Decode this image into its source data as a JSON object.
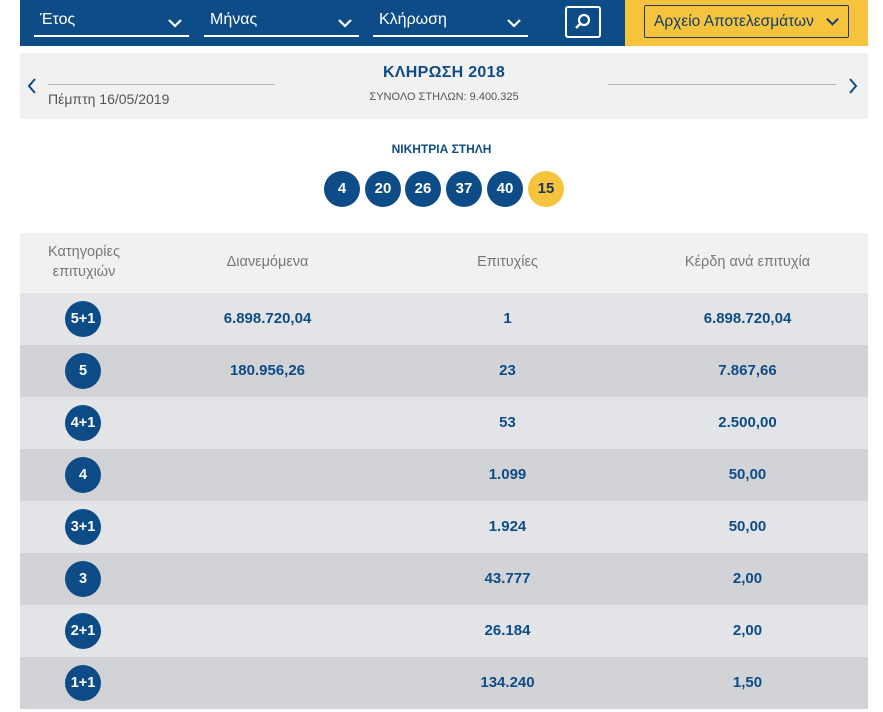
{
  "filters": {
    "year_label": "Έτος",
    "month_label": "Μήνας",
    "draw_label": "Κλήρωση",
    "archive_label": "Αρχείο Αποτελεσμάτων"
  },
  "draw": {
    "date": "Πέμπτη 16/05/2019",
    "title": "ΚΛΗΡΩΣΗ 2018",
    "total_columns": "ΣΥΝΟΛΟ ΣΤΗΛΩΝ: 9.400.325"
  },
  "winning": {
    "label": "ΝΙΚΗΤΡΙΑ ΣΤΗΛΗ",
    "numbers": [
      "4",
      "20",
      "26",
      "37",
      "40"
    ],
    "joker": "15"
  },
  "table": {
    "headers": {
      "category_line1": "Κατηγορίες",
      "category_line2": "επιτυχιών",
      "distributed": "Διανεμόμενα",
      "successes": "Επιτυχίες",
      "gain": "Κέρδη ανά επιτυχία"
    },
    "rows": [
      {
        "category": "5+1",
        "distributed": "6.898.720,04",
        "successes": "1",
        "gain": "6.898.720,04"
      },
      {
        "category": "5",
        "distributed": "180.956,26",
        "successes": "23",
        "gain": "7.867,66"
      },
      {
        "category": "4+1",
        "distributed": "",
        "successes": "53",
        "gain": "2.500,00"
      },
      {
        "category": "4",
        "distributed": "",
        "successes": "1.099",
        "gain": "50,00"
      },
      {
        "category": "3+1",
        "distributed": "",
        "successes": "1.924",
        "gain": "50,00"
      },
      {
        "category": "3",
        "distributed": "",
        "successes": "43.777",
        "gain": "2,00"
      },
      {
        "category": "2+1",
        "distributed": "",
        "successes": "26.184",
        "gain": "2,00"
      },
      {
        "category": "1+1",
        "distributed": "",
        "successes": "134.240",
        "gain": "1,50"
      }
    ]
  },
  "colors": {
    "primary": "#0e4c87",
    "accent": "#f6c33c"
  }
}
